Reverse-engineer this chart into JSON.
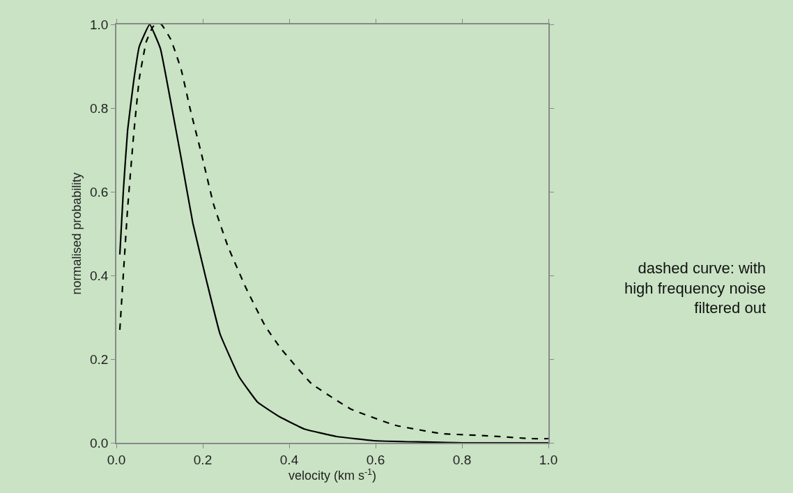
{
  "chart_data": {
    "type": "line",
    "xlabel": "velocity (km s$^{-1}$)",
    "ylabel": "normalised probability",
    "xlim": [
      0,
      1
    ],
    "ylim": [
      0,
      1
    ],
    "xticks": [
      {
        "value": 0,
        "label": "0.0"
      },
      {
        "value": 0.2,
        "label": "0.2"
      },
      {
        "value": 0.4,
        "label": "0.4"
      },
      {
        "value": 0.6,
        "label": "0.6"
      },
      {
        "value": 0.8,
        "label": "0.8"
      },
      {
        "value": 1,
        "label": "1.0"
      }
    ],
    "yticks": [
      {
        "value": 0,
        "label": "0.0"
      },
      {
        "value": 0.2,
        "label": "0.2"
      },
      {
        "value": 0.4,
        "label": "0.4"
      },
      {
        "value": 0.6,
        "label": "0.6"
      },
      {
        "value": 0.8,
        "label": "0.8"
      },
      {
        "value": 1,
        "label": "1.0"
      }
    ],
    "grid": false,
    "series": [
      {
        "color": "#000000",
        "line_style": "solid",
        "x": [
          0.008,
          0.016,
          0.026,
          0.04,
          0.053,
          0.077,
          0.102,
          0.128,
          0.15,
          0.177,
          0.209,
          0.24,
          0.284,
          0.327,
          0.378,
          0.435,
          0.51,
          0.596,
          0.8,
          1.0
        ],
        "values": [
          0.45,
          0.6,
          0.747,
          0.864,
          0.947,
          1.0,
          0.942,
          0.803,
          0.68,
          0.525,
          0.386,
          0.26,
          0.158,
          0.097,
          0.062,
          0.033,
          0.015,
          0.005,
          0.0,
          0.0
        ]
      },
      {
        "color": "#000000",
        "line_style": "dashed",
        "x": [
          0.008,
          0.016,
          0.026,
          0.04,
          0.053,
          0.069,
          0.085,
          0.104,
          0.126,
          0.15,
          0.171,
          0.198,
          0.225,
          0.258,
          0.3,
          0.344,
          0.381,
          0.451,
          0.542,
          0.645,
          0.752,
          0.854,
          0.96,
          1.0
        ],
        "values": [
          0.27,
          0.4,
          0.56,
          0.736,
          0.87,
          0.958,
          0.995,
          1.0,
          0.964,
          0.892,
          0.797,
          0.686,
          0.57,
          0.47,
          0.37,
          0.28,
          0.225,
          0.142,
          0.081,
          0.042,
          0.022,
          0.017,
          0.01,
          0.01
        ]
      }
    ],
    "annotations": [
      "dashed curve: with\nhigh frequency noise\nfiltered out"
    ]
  }
}
